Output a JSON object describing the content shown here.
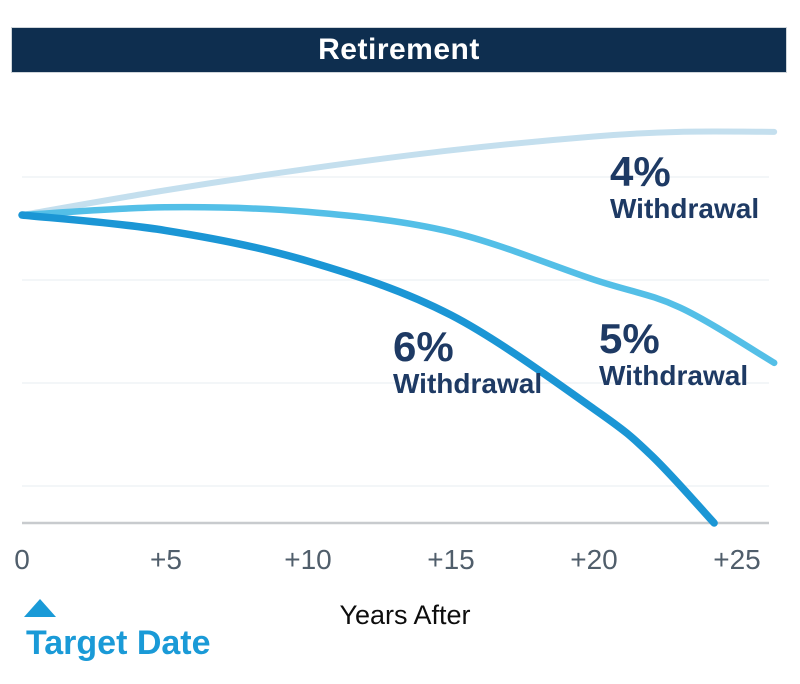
{
  "header": {
    "title": "Retirement"
  },
  "colors": {
    "title_bar_bg": "#0e2e4f",
    "title_text": "#ffffff",
    "series_4pct": "#c4dfee",
    "series_5pct": "#54bfe7",
    "series_6pct": "#1b96d5",
    "annotation_navy": "#1e3a64",
    "tick_text": "#505e6b",
    "axis_line": "#c8cbce",
    "grid_line": "#f3f6f8",
    "target_date_blue": "#1a9ad7",
    "x_title_text": "#0d0d0d"
  },
  "chart_data": {
    "type": "line",
    "title": "Retirement",
    "xlabel": "Years After",
    "ylabel": "",
    "xlim": [
      0,
      26.5
    ],
    "ylim": [
      0,
      140
    ],
    "x_ticks": [
      0,
      5,
      10,
      15,
      20,
      25
    ],
    "x_tick_labels": [
      "0",
      "+5",
      "+10",
      "+15",
      "+20",
      "+25"
    ],
    "grid": "faint horizontal gridlines, no y-axis labels",
    "legend_position": "inline annotations next to lines",
    "y_units": "relative portfolio value (start = 100, estimated from pixels)",
    "series": [
      {
        "id": "4pct",
        "name": "4% Withdrawal",
        "label_pct": "4%",
        "label_word": "Withdrawal",
        "color": "#c4dfee",
        "points": [
          [
            0,
            100
          ],
          [
            5,
            108
          ],
          [
            10,
            115
          ],
          [
            15,
            121
          ],
          [
            20,
            125.5
          ],
          [
            23,
            127
          ],
          [
            26.3,
            127
          ]
        ]
      },
      {
        "id": "5pct",
        "name": "5% Withdrawal",
        "label_pct": "5%",
        "label_word": "Withdrawal",
        "color": "#54bfe7",
        "points": [
          [
            0,
            100
          ],
          [
            5,
            102.5
          ],
          [
            10,
            101
          ],
          [
            15,
            94.5
          ],
          [
            20,
            79
          ],
          [
            23,
            70
          ],
          [
            26.3,
            52
          ]
        ]
      },
      {
        "id": "6pct",
        "name": "6% Withdrawal",
        "label_pct": "6%",
        "label_word": "Withdrawal",
        "color": "#1b96d5",
        "points": [
          [
            0,
            100
          ],
          [
            5,
            95
          ],
          [
            10,
            85
          ],
          [
            15,
            67.5
          ],
          [
            20,
            37
          ],
          [
            22,
            22
          ],
          [
            24.2,
            0
          ]
        ]
      }
    ],
    "annotations": [
      {
        "text": "Target Date",
        "x": 0,
        "marker": "up-triangle"
      }
    ]
  },
  "footer": {
    "target_date_label": "Target Date"
  }
}
